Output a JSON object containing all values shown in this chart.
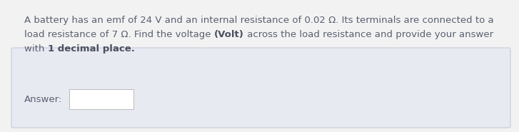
{
  "fig_bg": "#f2f2f2",
  "box_bg": "#e8eaf2",
  "box_edge": "#c8cad8",
  "white": "#ffffff",
  "ans_edge": "#bbbbbb",
  "text_color": "#5a6070",
  "bold_color": "#4a5060",
  "font_size": 9.5,
  "line1": "A battery has an emf of 24 V and an internal resistance of 0.02 Ω. Its terminals are connected to a",
  "line2_a": "load resistance of 7 Ω. Find the voltage ",
  "line2_b": "(Volt)",
  "line2_c": " across the load resistance and provide your answer",
  "line3_a": "with ",
  "line3_b": "1 decimal place.",
  "answer_label": "Answer:"
}
